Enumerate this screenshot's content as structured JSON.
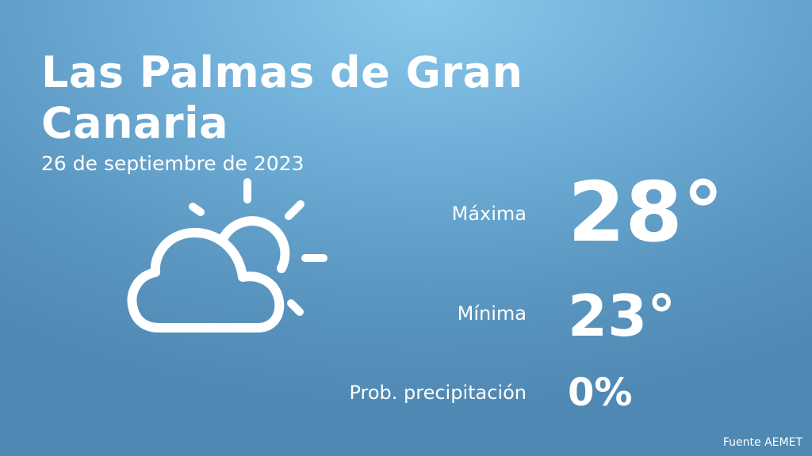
{
  "header": {
    "city": "Las Palmas de Gran Canaria",
    "date": "26 de septiembre de 2023"
  },
  "weather": {
    "icon": "sun-behind-cloud-icon",
    "max_label": "Máxima",
    "max_value": "28°",
    "min_label": "Mínima",
    "min_value": "23°",
    "precip_label": "Prob. precipitación",
    "precip_value": "0%"
  },
  "footer": {
    "source": "Fuente AEMET"
  },
  "colors": {
    "background_top": "#8cc8ea",
    "background_bottom": "#4f88b3",
    "text": "#ffffff"
  }
}
